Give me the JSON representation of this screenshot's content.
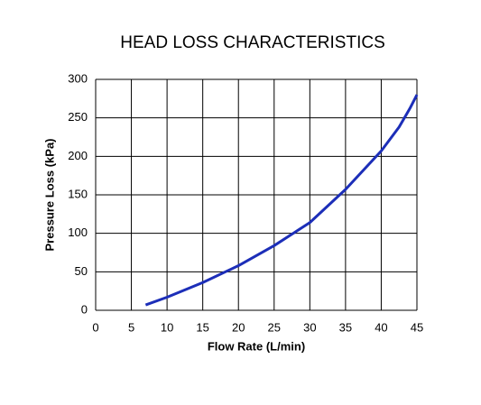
{
  "chart_data": {
    "type": "line",
    "title": "HEAD LOSS CHARACTERISTICS",
    "x_label": "Flow Rate (L/min)",
    "y_label": "Pressure Loss (kPa)",
    "x": [
      7,
      10,
      15,
      20,
      25,
      28,
      30,
      35,
      40,
      42.5,
      44,
      45
    ],
    "series": [
      {
        "color": "#1c2eb8",
        "values": [
          7,
          17,
          36,
          58,
          84,
          102,
          114,
          157,
          207,
          238,
          262,
          280
        ]
      }
    ],
    "xlim": [
      0,
      45
    ],
    "xticks": [
      0,
      5,
      10,
      15,
      20,
      25,
      30,
      35,
      40,
      45
    ],
    "ylim": [
      0,
      300
    ],
    "yticks": [
      0,
      50,
      100,
      150,
      200,
      250,
      300
    ],
    "grid": true
  }
}
